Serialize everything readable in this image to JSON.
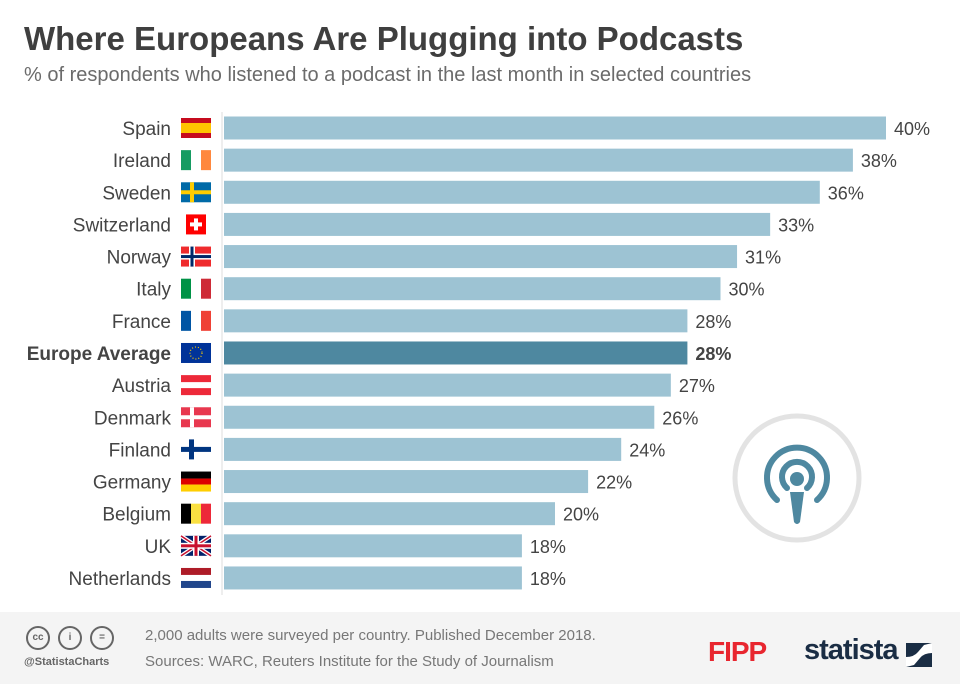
{
  "title": "Where Europeans Are Plugging into Podcasts",
  "subtitle": "% of respondents who listened to a podcast in the last month in selected countries",
  "colors": {
    "bar": "#9dc3d3",
    "highlight": "#4e88a0",
    "text": "#444444"
  },
  "chart_data": {
    "type": "bar",
    "orientation": "horizontal",
    "categories": [
      "Spain",
      "Ireland",
      "Sweden",
      "Switzerland",
      "Norway",
      "Italy",
      "France",
      "Europe Average",
      "Austria",
      "Denmark",
      "Finland",
      "Germany",
      "Belgium",
      "UK",
      "Netherlands"
    ],
    "values": [
      40,
      38,
      36,
      33,
      31,
      30,
      28,
      28,
      27,
      26,
      24,
      22,
      20,
      18,
      18
    ],
    "labels": [
      "40%",
      "38%",
      "36%",
      "33%",
      "31%",
      "30%",
      "28%",
      "28%",
      "27%",
      "26%",
      "24%",
      "22%",
      "20%",
      "18%",
      "18%"
    ],
    "highlight": "Europe Average",
    "flags": [
      "spain",
      "ireland",
      "sweden",
      "switzerland",
      "norway",
      "italy",
      "france",
      "eu",
      "austria",
      "denmark",
      "finland",
      "germany",
      "belgium",
      "uk",
      "netherlands"
    ],
    "xlim": [
      0,
      40
    ],
    "grid": false
  },
  "icon": "podcast-icon",
  "footer": {
    "note": "2,000 adults were surveyed per country. Published December 2018.",
    "sources": "Sources: WARC, Reuters Institute for the Study of Journalism",
    "handle": "@StatistaCharts",
    "cc_icons": [
      "cc",
      "i",
      "="
    ],
    "logo1": "FIPP",
    "logo2": "statista"
  }
}
